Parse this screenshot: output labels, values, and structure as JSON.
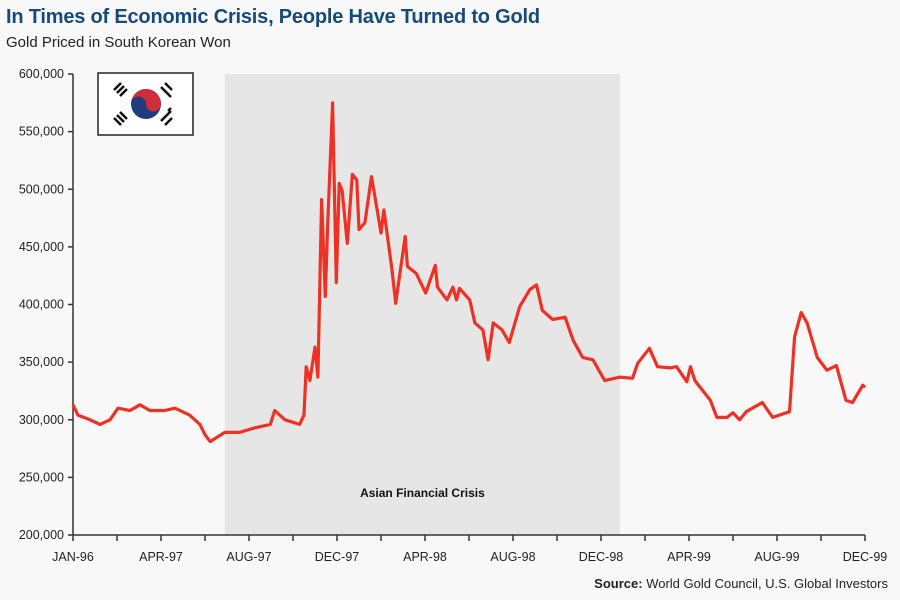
{
  "chart_data": {
    "type": "line",
    "title": "In Times of Economic Crisis, People Have Turned to Gold",
    "subtitle": "Gold Priced in South Korean Won",
    "source_label": "Source:",
    "source_text": "World Gold Council, U.S. Global Investors",
    "xlabel": "",
    "ylabel": "",
    "ylim": [
      200000,
      600000
    ],
    "y_ticks": [
      "200,000",
      "250,000",
      "300,000",
      "350,000",
      "400,000",
      "450,000",
      "500,000",
      "550,000",
      "600,000"
    ],
    "x_ticks": [
      {
        "label": "JAN-96",
        "date": "1996-01-01"
      },
      {
        "label": "APR-97",
        "date": "1997-04-01"
      },
      {
        "label": "AUG-97",
        "date": "1997-08-01"
      },
      {
        "label": "DEC-97",
        "date": "1997-12-01"
      },
      {
        "label": "APR-98",
        "date": "1998-04-01"
      },
      {
        "label": "AUG-98",
        "date": "1998-08-01"
      },
      {
        "label": "DEC-98",
        "date": "1998-12-01"
      },
      {
        "label": "APR-99",
        "date": "1999-04-01"
      },
      {
        "label": "AUG-99",
        "date": "1999-08-01"
      },
      {
        "label": "DEC-99",
        "date": "1999-12-01"
      }
    ],
    "grid": false,
    "line_color": "#ee3124",
    "shaded_region": {
      "label": "Asian Financial Crisis",
      "start": "1997-06-28",
      "end": "1998-12-27",
      "color": "#e6e6e6"
    },
    "flag": "south-korea-flag",
    "series": [
      {
        "x": [
          "1996-01-01",
          "1996-01-26",
          "1996-03-28",
          "1996-05-19",
          "1996-07-10",
          "1996-08-21",
          "1996-10-22",
          "1996-12-13",
          "1997-02-04",
          "1997-04-06",
          "1997-04-20",
          "1997-05-10",
          "1997-05-24",
          "1997-06-01",
          "1997-06-08",
          "1997-06-28",
          "1997-07-18",
          "1997-08-09",
          "1997-08-30",
          "1997-09-06",
          "1997-09-20",
          "1997-10-10",
          "1997-10-16",
          "1997-10-19",
          "1997-10-24",
          "1997-11-01",
          "1997-11-05",
          "1997-11-10",
          "1997-11-15",
          "1997-11-18",
          "1997-11-25",
          "1997-11-30",
          "1997-12-04",
          "1997-12-08",
          "1997-12-15",
          "1997-12-22",
          "1997-12-28",
          "1998-01-01",
          "1998-01-09",
          "1998-01-18",
          "1998-01-25",
          "1998-02-01",
          "1998-02-05",
          "1998-02-16",
          "1998-02-21",
          "1998-02-25",
          "1998-03-04",
          "1998-03-07",
          "1998-03-19",
          "1998-04-02",
          "1998-04-15",
          "1998-04-18",
          "1998-05-01",
          "1998-05-09",
          "1998-05-14",
          "1998-05-18",
          "1998-06-02",
          "1998-06-09",
          "1998-06-20",
          "1998-06-27",
          "1998-07-04",
          "1998-07-16",
          "1998-07-26",
          "1998-08-10",
          "1998-08-24",
          "1998-09-03",
          "1998-09-11",
          "1998-09-25",
          "1998-10-12",
          "1998-10-23",
          "1998-11-06",
          "1998-11-20",
          "1998-12-06",
          "1998-12-27",
          "1999-01-14",
          "1999-01-21",
          "1999-02-07",
          "1999-02-18",
          "1999-03-05",
          "1999-03-14",
          "1999-03-28",
          "1999-04-03",
          "1999-04-09",
          "1999-04-30",
          "1999-05-09",
          "1999-05-23",
          "1999-06-01",
          "1999-06-10",
          "1999-06-19",
          "1999-07-11",
          "1999-07-25",
          "1999-08-18",
          "1999-08-25",
          "1999-09-04",
          "1999-09-12",
          "1999-09-26",
          "1999-10-09",
          "1999-10-22",
          "1999-11-05",
          "1999-11-14",
          "1999-11-28",
          "1999-12-01"
        ],
        "values": [
          313000,
          304000,
          300000,
          296000,
          300000,
          310000,
          308000,
          313000,
          308000,
          308000,
          310000,
          304000,
          296000,
          287000,
          281000,
          289000,
          289000,
          293000,
          296000,
          308000,
          300000,
          296000,
          304000,
          346000,
          334000,
          363000,
          337000,
          491000,
          407000,
          465000,
          575000,
          419000,
          505000,
          499000,
          453000,
          513000,
          508000,
          465000,
          471000,
          511000,
          485000,
          462000,
          482000,
          430000,
          401000,
          419000,
          459000,
          433000,
          427000,
          410000,
          434000,
          415000,
          404000,
          415000,
          404000,
          414000,
          404000,
          384000,
          378000,
          352000,
          384000,
          378000,
          367000,
          398000,
          413000,
          417000,
          395000,
          387000,
          389000,
          369000,
          354000,
          352000,
          334000,
          337000,
          336000,
          349000,
          362000,
          346000,
          345000,
          346000,
          333000,
          346000,
          334000,
          317000,
          302000,
          302000,
          306000,
          300000,
          307000,
          315000,
          302000,
          307000,
          372000,
          393000,
          384000,
          354000,
          343000,
          347000,
          317000,
          315000,
          330000,
          328000
        ]
      }
    ]
  }
}
